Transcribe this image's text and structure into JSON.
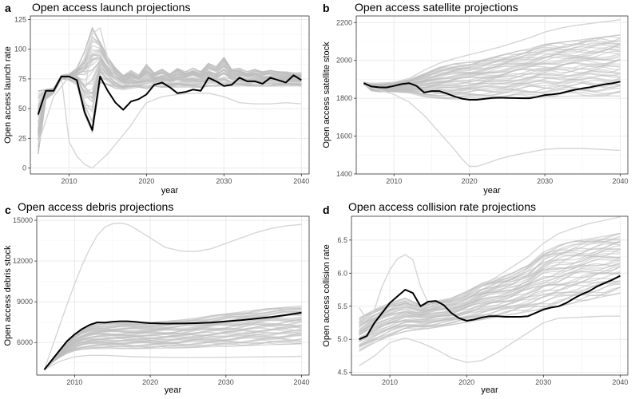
{
  "colors": {
    "projection": "#bdbdbd",
    "outlier": "#d6d6d6",
    "history": "#000000",
    "grid": "#ebebeb"
  },
  "chart_data": [
    {
      "letter": "a",
      "type": "line",
      "title": "Open access launch projections",
      "xlabel": "year",
      "ylabel": "Open access launch rate",
      "xlim": [
        2005,
        2041
      ],
      "ylim": [
        -5,
        128
      ],
      "xticks": [
        2010,
        2020,
        2030,
        2040
      ],
      "yticks": [
        0,
        25,
        50,
        75,
        100,
        125
      ],
      "grid": true,
      "history": {
        "x": [
          2006,
          2007,
          2008,
          2009,
          2010,
          2011,
          2012,
          2013,
          2014,
          2015,
          2016,
          2017,
          2018,
          2019,
          2020,
          2021,
          2022,
          2023,
          2024,
          2025,
          2026,
          2027,
          2028,
          2029,
          2030,
          2031,
          2032,
          2033,
          2034,
          2035,
          2036,
          2037,
          2038,
          2039,
          2040
        ],
        "y": [
          45,
          65,
          65,
          77,
          77,
          74,
          47,
          32,
          77,
          65,
          55,
          49,
          56,
          58,
          62,
          70,
          72,
          68,
          63,
          64,
          66,
          65,
          76,
          73,
          69,
          70,
          76,
          73,
          73,
          71,
          76,
          74,
          72,
          78,
          74
        ]
      },
      "band": {
        "x": [
          2006,
          2007,
          2008,
          2009,
          2010,
          2011,
          2012,
          2013,
          2014,
          2015,
          2016,
          2017,
          2018,
          2019,
          2020,
          2021,
          2022,
          2023,
          2024,
          2025,
          2026,
          2027,
          2028,
          2029,
          2030,
          2031,
          2032,
          2033,
          2034,
          2035,
          2036,
          2037,
          2038,
          2039,
          2040
        ],
        "low": [
          12,
          58,
          63,
          75,
          74,
          70,
          45,
          30,
          72,
          70,
          67,
          66,
          67,
          68,
          67,
          69,
          68,
          68,
          68,
          68,
          68,
          68,
          69,
          69,
          69,
          69,
          69,
          69,
          69,
          69,
          69,
          69,
          69,
          69,
          69
        ],
        "high": [
          65,
          66,
          67,
          78,
          79,
          84,
          98,
          118,
          106,
          93,
          84,
          78,
          82,
          78,
          87,
          80,
          83,
          79,
          84,
          81,
          84,
          81,
          88,
          85,
          93,
          83,
          84,
          81,
          83,
          81,
          82,
          81,
          81,
          80,
          80
        ]
      },
      "outliers": [
        {
          "x": [
            2006,
            2007,
            2008,
            2009,
            2010,
            2011,
            2012,
            2013,
            2014,
            2015,
            2016,
            2017,
            2018,
            2019,
            2020,
            2022,
            2024,
            2026,
            2028,
            2030,
            2032,
            2034,
            2036,
            2038,
            2040
          ],
          "y": [
            62,
            65,
            65,
            77,
            22,
            10,
            3,
            0,
            6,
            12,
            20,
            28,
            36,
            46,
            55,
            60,
            62,
            63,
            63,
            60,
            55,
            54,
            54,
            55,
            54
          ]
        },
        {
          "x": [
            2006,
            2008,
            2010,
            2011,
            2012,
            2013,
            2014,
            2015,
            2016,
            2017,
            2018,
            2019,
            2020,
            2025,
            2030,
            2035,
            2040
          ],
          "y": [
            20,
            60,
            77,
            70,
            60,
            113,
            118,
            92,
            75,
            71,
            70,
            71,
            72,
            72,
            72,
            72,
            72
          ]
        }
      ]
    },
    {
      "letter": "b",
      "type": "line",
      "title": "Open access satellite projections",
      "xlabel": "year",
      "ylabel": "Open access satellite stock",
      "xlim": [
        2005,
        2041
      ],
      "ylim": [
        1400,
        2235
      ],
      "xticks": [
        2010,
        2020,
        2030,
        2040
      ],
      "yticks": [
        1400,
        1600,
        1800,
        2000,
        2200
      ],
      "grid": true,
      "history": {
        "x": [
          2006,
          2007,
          2008,
          2009,
          2010,
          2011,
          2012,
          2013,
          2014,
          2015,
          2016,
          2017,
          2018,
          2019,
          2020,
          2021,
          2022,
          2023,
          2024,
          2025,
          2026,
          2027,
          2028,
          2029,
          2030,
          2031,
          2032,
          2033,
          2034,
          2035,
          2036,
          2037,
          2038,
          2039,
          2040
        ],
        "y": [
          1880,
          1862,
          1858,
          1857,
          1865,
          1875,
          1880,
          1865,
          1830,
          1838,
          1838,
          1825,
          1810,
          1798,
          1792,
          1792,
          1797,
          1802,
          1803,
          1802,
          1801,
          1800,
          1800,
          1808,
          1817,
          1821,
          1826,
          1836,
          1845,
          1852,
          1858,
          1867,
          1874,
          1880,
          1888
        ]
      },
      "band": {
        "x": [
          2006,
          2007,
          2008,
          2009,
          2010,
          2012,
          2014,
          2016,
          2018,
          2020,
          2022,
          2024,
          2026,
          2028,
          2030,
          2032,
          2034,
          2036,
          2038,
          2040
        ],
        "low": [
          1875,
          1840,
          1835,
          1835,
          1835,
          1828,
          1808,
          1800,
          1795,
          1795,
          1797,
          1800,
          1803,
          1805,
          1809,
          1810,
          1812,
          1812,
          1813,
          1812
        ],
        "high": [
          1885,
          1878,
          1878,
          1878,
          1883,
          1898,
          1930,
          1962,
          1982,
          1990,
          2005,
          2025,
          2045,
          2062,
          2085,
          2095,
          2105,
          2115,
          2125,
          2135
        ]
      },
      "outliers": [
        {
          "x": [
            2006,
            2008,
            2010,
            2012,
            2014,
            2016,
            2018,
            2019,
            2020,
            2021,
            2022,
            2024,
            2026,
            2028,
            2030,
            2032,
            2035,
            2040
          ],
          "y": [
            1870,
            1845,
            1820,
            1780,
            1710,
            1620,
            1530,
            1480,
            1440,
            1440,
            1452,
            1480,
            1500,
            1515,
            1530,
            1535,
            1535,
            1525
          ]
        },
        {
          "x": [
            2006,
            2008,
            2010,
            2012,
            2014,
            2016,
            2018,
            2020,
            2022,
            2024,
            2026,
            2028,
            2030,
            2032,
            2034,
            2036,
            2038,
            2040
          ],
          "y": [
            1880,
            1880,
            1885,
            1905,
            1948,
            1985,
            2010,
            2030,
            2050,
            2070,
            2095,
            2120,
            2150,
            2170,
            2185,
            2195,
            2205,
            2215
          ]
        }
      ]
    },
    {
      "letter": "c",
      "type": "line",
      "title": "Open access debris projections",
      "xlabel": "year",
      "ylabel": "Open access debris stock",
      "xlim": [
        2005,
        2041
      ],
      "ylim": [
        3600,
        15300
      ],
      "xticks": [
        2010,
        2020,
        2030,
        2040
      ],
      "yticks": [
        6000,
        9000,
        12000,
        15000
      ],
      "grid": true,
      "history": {
        "x": [
          2006,
          2007,
          2008,
          2009,
          2010,
          2011,
          2012,
          2013,
          2014,
          2015,
          2016,
          2017,
          2018,
          2019,
          2020,
          2022,
          2024,
          2026,
          2028,
          2030,
          2032,
          2034,
          2036,
          2038,
          2040
        ],
        "y": [
          4000,
          4700,
          5400,
          6100,
          6600,
          7000,
          7300,
          7480,
          7470,
          7520,
          7560,
          7560,
          7530,
          7470,
          7420,
          7390,
          7400,
          7420,
          7470,
          7550,
          7640,
          7760,
          7880,
          8030,
          8200
        ]
      },
      "band": {
        "x": [
          2006,
          2007,
          2008,
          2009,
          2010,
          2011,
          2012,
          2013,
          2014,
          2016,
          2018,
          2020,
          2022,
          2024,
          2026,
          2028,
          2030,
          2032,
          2034,
          2036,
          2038,
          2040
        ],
        "low": [
          4000,
          4500,
          4900,
          5200,
          5400,
          5500,
          5550,
          5550,
          5550,
          5560,
          5560,
          5570,
          5590,
          5610,
          5640,
          5680,
          5720,
          5760,
          5800,
          5840,
          5880,
          5900
        ],
        "high": [
          4000,
          4700,
          5400,
          6100,
          6600,
          7000,
          7250,
          7350,
          7380,
          7420,
          7450,
          7480,
          7550,
          7650,
          7800,
          7950,
          8100,
          8250,
          8400,
          8500,
          8600,
          8700
        ]
      },
      "outliers": [
        {
          "x": [
            2006,
            2007,
            2008,
            2009,
            2010,
            2011,
            2012,
            2013,
            2014,
            2015,
            2016,
            2017,
            2018,
            2020,
            2022,
            2024,
            2026,
            2028,
            2030,
            2032,
            2034,
            2036,
            2038,
            2040
          ],
          "y": [
            4000,
            5600,
            7200,
            8800,
            10300,
            11700,
            12900,
            13900,
            14500,
            14750,
            14800,
            14700,
            14400,
            13700,
            13000,
            12750,
            12700,
            12900,
            13300,
            13700,
            14100,
            14400,
            14600,
            14700
          ]
        },
        {
          "x": [
            2006,
            2008,
            2010,
            2012,
            2014,
            2016,
            2018,
            2020,
            2025,
            2030,
            2035,
            2040
          ],
          "y": [
            4000,
            4600,
            4950,
            5050,
            5050,
            5000,
            4950,
            4920,
            4900,
            4910,
            4940,
            4980
          ]
        }
      ]
    },
    {
      "letter": "d",
      "type": "line",
      "title": "Open access collision rate projections",
      "xlabel": "year",
      "ylabel": "Open access collision rate",
      "xlim": [
        2005,
        2041
      ],
      "ylim": [
        4.46,
        6.86
      ],
      "xticks": [
        2010,
        2020,
        2030,
        2040
      ],
      "yticks": [
        4.5,
        5.0,
        5.5,
        6.0,
        6.5
      ],
      "grid": true,
      "history": {
        "x": [
          2006,
          2007,
          2008,
          2009,
          2010,
          2011,
          2012,
          2013,
          2014,
          2015,
          2016,
          2017,
          2018,
          2019,
          2020,
          2021,
          2022,
          2023,
          2024,
          2025,
          2026,
          2027,
          2028,
          2029,
          2030,
          2031,
          2032,
          2033,
          2034,
          2035,
          2036,
          2037,
          2038,
          2039,
          2040
        ],
        "y": [
          5.0,
          5.05,
          5.25,
          5.4,
          5.55,
          5.65,
          5.75,
          5.7,
          5.5,
          5.57,
          5.58,
          5.52,
          5.4,
          5.32,
          5.28,
          5.3,
          5.33,
          5.35,
          5.35,
          5.34,
          5.34,
          5.34,
          5.35,
          5.4,
          5.45,
          5.48,
          5.5,
          5.55,
          5.62,
          5.68,
          5.73,
          5.8,
          5.85,
          5.9,
          5.96
        ]
      },
      "band": {
        "x": [
          2006,
          2008,
          2010,
          2012,
          2014,
          2016,
          2018,
          2020,
          2022,
          2024,
          2026,
          2028,
          2030,
          2032,
          2034,
          2036,
          2038,
          2040
        ],
        "low": [
          4.82,
          4.95,
          5.05,
          5.12,
          5.15,
          5.18,
          5.22,
          5.26,
          5.3,
          5.34,
          5.38,
          5.42,
          5.46,
          5.5,
          5.55,
          5.6,
          5.65,
          5.7
        ],
        "high": [
          5.32,
          5.45,
          5.55,
          5.62,
          5.52,
          5.58,
          5.62,
          5.72,
          5.85,
          5.92,
          6.0,
          6.12,
          6.32,
          6.42,
          6.48,
          6.52,
          6.56,
          6.6
        ]
      },
      "outliers": [
        {
          "x": [
            2006,
            2008,
            2010,
            2012,
            2014,
            2016,
            2018,
            2020,
            2022,
            2024,
            2026,
            2028,
            2030,
            2032,
            2034,
            2036,
            2038,
            2040
          ],
          "y": [
            4.6,
            4.75,
            4.95,
            5.02,
            4.95,
            4.85,
            4.72,
            4.65,
            4.68,
            4.8,
            4.95,
            5.1,
            5.25,
            5.32,
            5.33,
            5.34,
            5.35,
            5.35
          ]
        },
        {
          "x": [
            2006,
            2007,
            2008,
            2009,
            2010,
            2011,
            2012,
            2013,
            2014,
            2015,
            2016,
            2018,
            2020,
            2022,
            2024,
            2026,
            2028,
            2030,
            2032,
            2034,
            2036,
            2038,
            2040
          ],
          "y": [
            5.48,
            5.3,
            5.45,
            5.8,
            6.05,
            6.22,
            6.28,
            6.2,
            5.8,
            5.55,
            5.5,
            5.55,
            5.68,
            5.82,
            5.95,
            6.1,
            6.25,
            6.45,
            6.6,
            6.68,
            6.75,
            6.8,
            6.85
          ]
        }
      ]
    }
  ]
}
